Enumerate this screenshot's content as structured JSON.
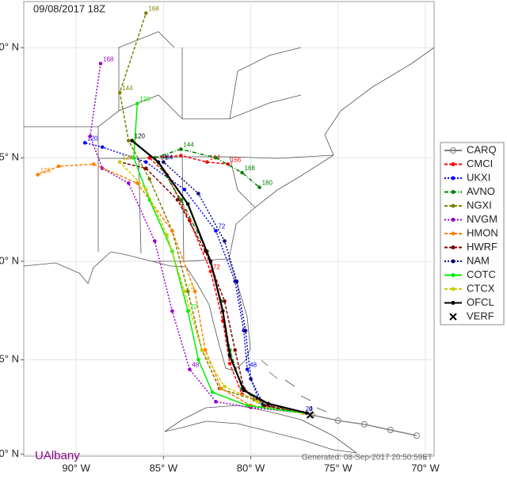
{
  "map": {
    "title": "09/08/2017 18Z",
    "watermark": "UAlbany",
    "generated": "Generated: 08-Sep-2017 20:50:59ET",
    "xlim": [
      -93,
      -69.5
    ],
    "ylim": [
      19.9,
      42.3
    ],
    "xticks": [
      {
        "value": -90,
        "label": "90° W"
      },
      {
        "value": -85,
        "label": "85° W"
      },
      {
        "value": -80,
        "label": "80° W"
      },
      {
        "value": -75,
        "label": "75° W"
      },
      {
        "value": -70,
        "label": "70° W"
      }
    ],
    "yticks": [
      {
        "value": 20,
        "label": "20° N"
      },
      {
        "value": 25,
        "label": "25° N"
      },
      {
        "value": 30,
        "label": "30° N"
      },
      {
        "value": 35,
        "label": "35° N"
      },
      {
        "value": 40,
        "label": "40° N"
      }
    ],
    "grid": true,
    "tracks": [
      {
        "name": "CARQ",
        "color": "#808080",
        "dash": "",
        "lon": [
          -70.5,
          -72,
          -73.5,
          -75,
          -76.5
        ],
        "lat": [
          21.0,
          21.3,
          21.6,
          21.8,
          22.1
        ],
        "point_labels": [
          null,
          null,
          null,
          null,
          null
        ]
      },
      {
        "name": "CMCI",
        "color": "#ff0000",
        "dash": "4 2",
        "lon": [
          -77,
          -79,
          -80.5,
          -81.2,
          -81.6,
          -82.3,
          -83.5,
          -84.8,
          -85.8,
          -84,
          -82.5,
          -81.3
        ],
        "lat": [
          22.2,
          22.6,
          23.2,
          24.8,
          27,
          29.5,
          32,
          34.2,
          35,
          35.1,
          34.8,
          34.7
        ],
        "point_labels": [
          null,
          null,
          null,
          null,
          null,
          "72",
          null,
          null,
          null,
          null,
          "144",
          "156"
        ]
      },
      {
        "name": "UKXI",
        "color": "#0000ff",
        "dash": "2 2",
        "lon": [
          -77,
          -79.5,
          -80.2,
          -80.4,
          -80.9,
          -82,
          -83.8,
          -86,
          -88.5,
          -89.5
        ],
        "lat": [
          22.2,
          22.8,
          24.5,
          26.5,
          29,
          31.5,
          33.5,
          34.8,
          35.5,
          35.7
        ],
        "point_labels": [
          "24",
          null,
          "48",
          null,
          null,
          "72",
          null,
          null,
          null,
          "120"
        ]
      },
      {
        "name": "AVNO",
        "color": "#008000",
        "dash": "5 2 1 2",
        "lon": [
          -77,
          -79.3,
          -80.5,
          -81.2,
          -81.7,
          -82.5,
          -84,
          -85.5,
          -84,
          -82,
          -80.5,
          -79.5
        ],
        "lat": [
          22.2,
          22.6,
          23.5,
          25.5,
          28,
          30.5,
          33,
          35,
          35.4,
          35,
          34.3,
          33.6
        ],
        "point_labels": [
          null,
          null,
          null,
          null,
          null,
          null,
          null,
          null,
          "144",
          null,
          "168",
          "180"
        ]
      },
      {
        "name": "NGXI",
        "color": "#808000",
        "dash": "4 2",
        "lon": [
          -77,
          -79.8,
          -81.8,
          -82.8,
          -83.6,
          -84.5,
          -85.8,
          -87,
          -87.5,
          -86
        ],
        "lat": [
          22.2,
          22.9,
          23.5,
          25.5,
          28.5,
          31.5,
          34,
          35.8,
          38,
          41.5
        ],
        "point_labels": [
          null,
          null,
          null,
          null,
          null,
          null,
          null,
          null,
          "144",
          "168"
        ]
      },
      {
        "name": "NVGM",
        "color": "#9900cc",
        "dash": "2 2",
        "lon": [
          -77,
          -80,
          -82,
          -83.5,
          -84.5,
          -85.5,
          -87,
          -88.5,
          -89.2,
          -88.6
        ],
        "lat": [
          22.2,
          22.5,
          22.8,
          24.5,
          27.5,
          31,
          33.8,
          34.5,
          36,
          39.3
        ],
        "point_labels": [
          null,
          null,
          null,
          "48",
          null,
          null,
          null,
          null,
          null,
          "168"
        ]
      },
      {
        "name": "HMON",
        "color": "#ff8000",
        "dash": "4 2",
        "lon": [
          -77,
          -80,
          -81.7,
          -82.6,
          -83.2,
          -84.5,
          -86.5,
          -89,
          -91,
          -92.2
        ],
        "lat": [
          22.2,
          22.6,
          23.5,
          25.5,
          28.5,
          31.5,
          33.8,
          34.7,
          34.6,
          34.2
        ],
        "point_labels": [
          null,
          null,
          null,
          null,
          null,
          null,
          null,
          null,
          null,
          "126"
        ]
      },
      {
        "name": "HWRF",
        "color": "#800000",
        "dash": "4 2",
        "lon": [
          -77,
          -79.2,
          -80.4,
          -80.9,
          -81.5,
          -82.6,
          -84.2,
          -86,
          -87.5
        ],
        "lat": [
          22.2,
          22.6,
          23.5,
          25.5,
          28,
          30.5,
          33,
          34.5,
          34.8
        ],
        "point_labels": [
          null,
          null,
          null,
          null,
          null,
          null,
          null,
          null,
          "126"
        ]
      },
      {
        "name": "NAM",
        "color": "#000080",
        "dash": "2 2",
        "lon": [
          -77,
          -79.3,
          -80,
          -80.3,
          -80.8,
          -81.5,
          -83,
          -85
        ],
        "lat": [
          22.2,
          22.7,
          24,
          26.5,
          29,
          31,
          33.3,
          34.8
        ],
        "point_labels": [
          null,
          null,
          null,
          null,
          null,
          null,
          null,
          "84"
        ]
      },
      {
        "name": "COTC",
        "color": "#00ee00",
        "dash": "",
        "lon": [
          -77,
          -80.2,
          -82.2,
          -83,
          -83.6,
          -84.5,
          -85.8,
          -86.7,
          -86.5
        ],
        "lat": [
          22.2,
          22.6,
          23.3,
          25,
          27.5,
          30.5,
          33,
          35,
          37.5
        ],
        "point_labels": [
          null,
          null,
          null,
          null,
          "72",
          null,
          null,
          null,
          "120"
        ]
      },
      {
        "name": "CTCX",
        "color": "#cccc00",
        "dash": "4 2",
        "lon": [
          -77,
          -79.6,
          -81.5,
          -82.8,
          -83.8,
          -84.8,
          -86,
          -87.5
        ],
        "lat": [
          22.2,
          22.8,
          23.6,
          25.5,
          28.5,
          31.3,
          33.5,
          34.8
        ],
        "point_labels": [
          null,
          null,
          null,
          null,
          "72",
          null,
          null,
          "120"
        ]
      },
      {
        "name": "OFCL",
        "color": "#000000",
        "dash": "",
        "lon": [
          -76.8,
          -79,
          -80.4,
          -81.2,
          -81.6,
          -82.3,
          -83.6,
          -85.3,
          -86.8
        ],
        "lat": [
          22.2,
          22.7,
          23.4,
          25.2,
          27.5,
          30,
          32.8,
          34.8,
          35.8
        ],
        "point_labels": [
          "0",
          null,
          null,
          null,
          null,
          null,
          null,
          "96",
          "120"
        ]
      },
      {
        "name": "VERF",
        "color": "#000000",
        "dash": "none",
        "lon": [
          -76.6
        ],
        "lat": [
          22.1
        ],
        "point_labels": [
          null
        ]
      }
    ]
  }
}
